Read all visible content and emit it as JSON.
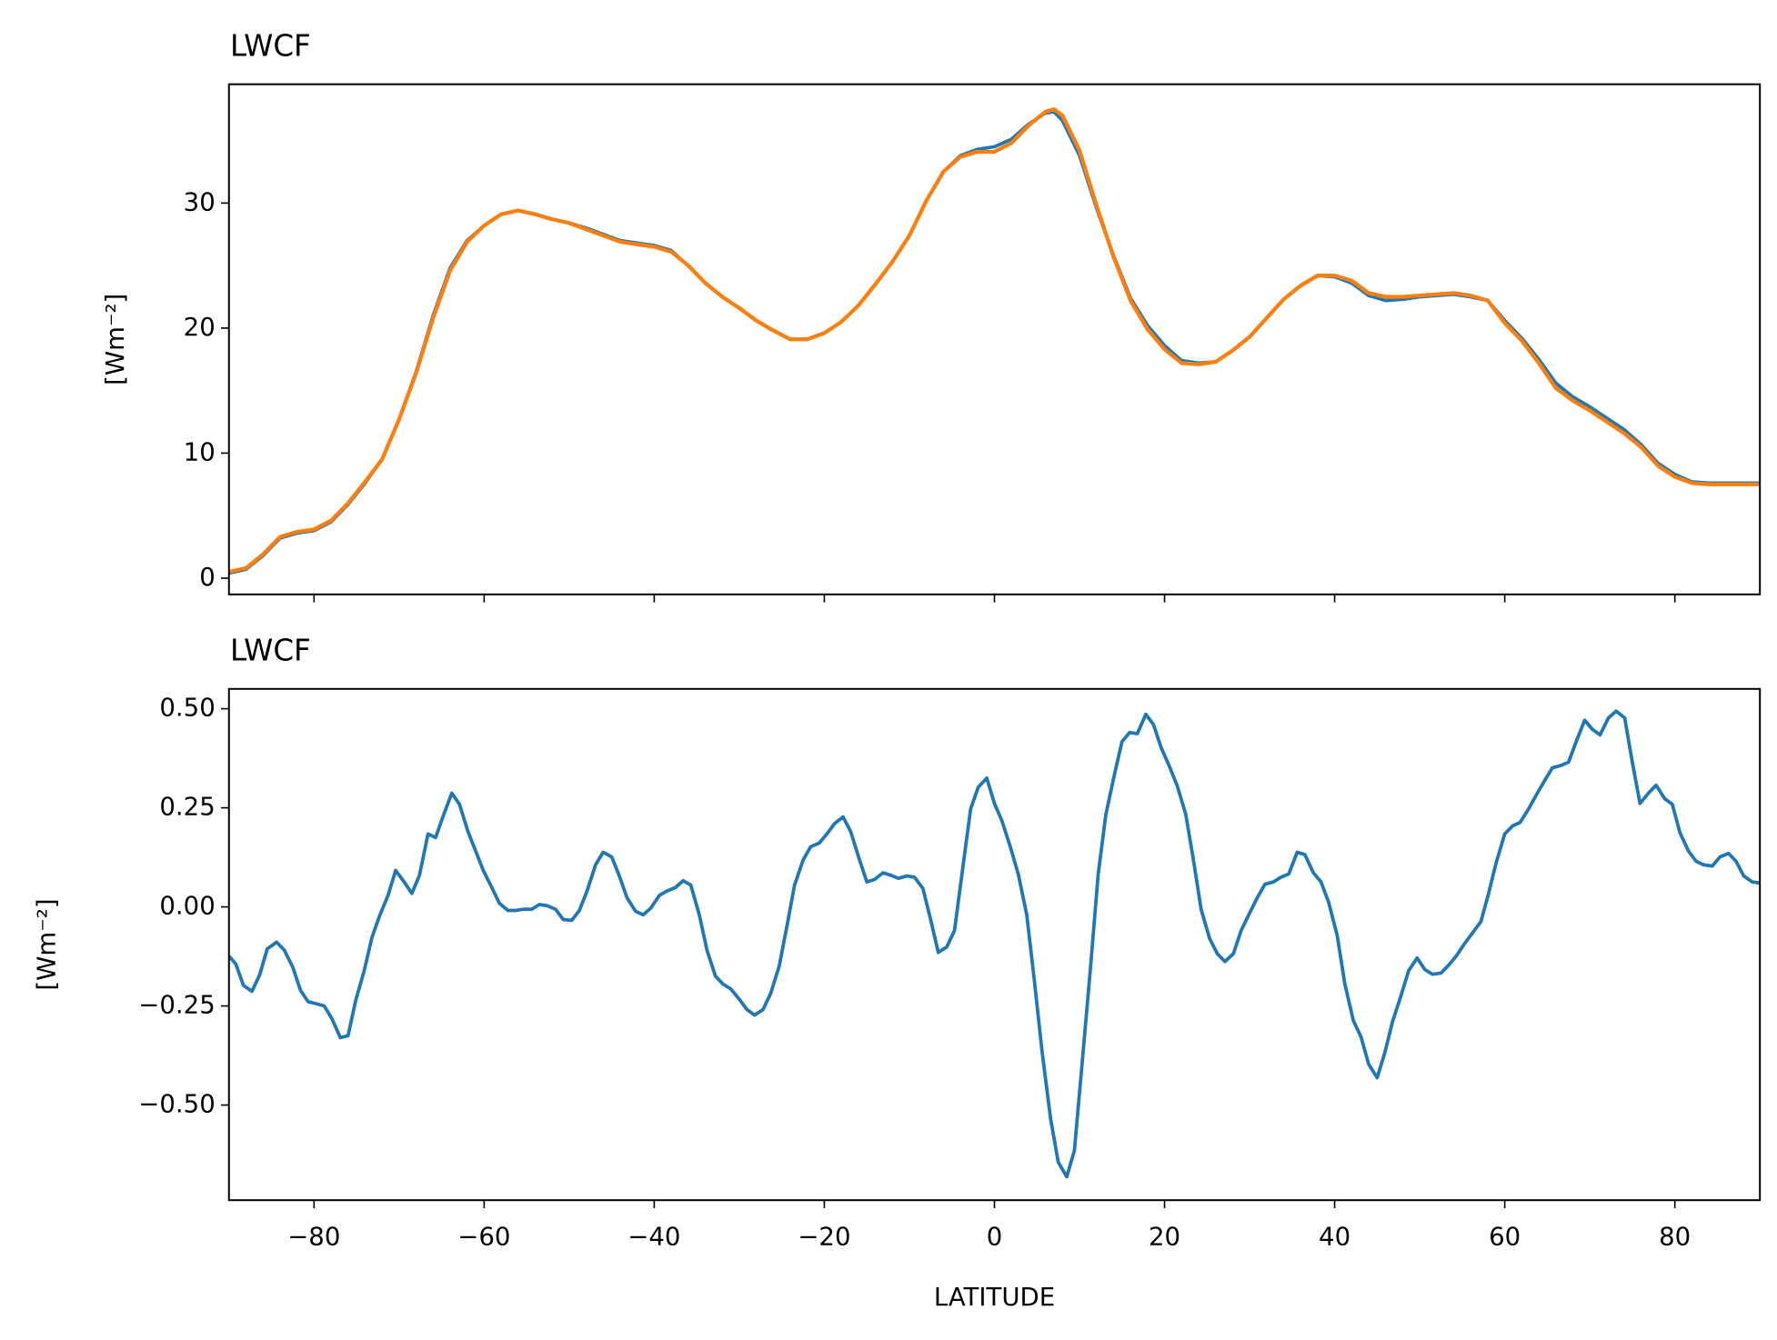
{
  "chart_data": [
    {
      "type": "line",
      "title": "LWCF",
      "ylabel": "[Wm⁻²]",
      "x": [
        -90,
        -88,
        -86,
        -84,
        -82,
        -80,
        -78,
        -76,
        -74,
        -72,
        -70,
        -68,
        -66,
        -64,
        -62,
        -60,
        -58,
        -56,
        -54,
        -52,
        -50,
        -48,
        -46,
        -44,
        -42,
        -40,
        -38,
        -36,
        -34,
        -32,
        -30,
        -28,
        -26,
        -24,
        -22,
        -20,
        -18,
        -16,
        -14,
        -12,
        -10,
        -8,
        -6,
        -4,
        -2,
        0,
        2,
        4,
        6,
        7,
        8,
        10,
        12,
        14,
        16,
        18,
        20,
        22,
        24,
        26,
        28,
        30,
        32,
        34,
        36,
        38,
        40,
        42,
        44,
        46,
        48,
        50,
        52,
        54,
        56,
        58,
        60,
        62,
        64,
        66,
        68,
        70,
        72,
        74,
        76,
        78,
        80,
        82,
        84,
        86,
        88,
        90
      ],
      "series": [
        {
          "color": "#1f77b4",
          "values": [
            0.4,
            0.7,
            1.8,
            3.2,
            3.6,
            3.8,
            4.5,
            5.9,
            7.6,
            9.5,
            12.7,
            16.5,
            21,
            24.8,
            27,
            28.2,
            29.1,
            29.4,
            29.1,
            28.7,
            28.4,
            28,
            27.5,
            27,
            26.8,
            26.6,
            26.2,
            25,
            23.6,
            22.5,
            21.6,
            20.6,
            19.8,
            19.1,
            19.1,
            19.6,
            20.5,
            21.8,
            23.5,
            25.3,
            27.4,
            30.2,
            32.5,
            33.8,
            34.3,
            34.5,
            35.1,
            36.3,
            37.2,
            37.3,
            36.6,
            33.8,
            29.6,
            25.8,
            22.4,
            20.2,
            18.6,
            17.4,
            17.2,
            17.3,
            18.2,
            19.3,
            20.8,
            22.3,
            23.4,
            24.2,
            24.1,
            23.6,
            22.6,
            22.2,
            22.3,
            22.5,
            22.6,
            22.7,
            22.5,
            22.2,
            20.6,
            19.2,
            17.5,
            15.6,
            14.5,
            13.7,
            12.8,
            11.9,
            10.7,
            9.2,
            8.3,
            7.7,
            7.6,
            7.6,
            7.6,
            7.6
          ]
        },
        {
          "color": "#ff7f0e",
          "values": [
            0.5,
            0.8,
            1.9,
            3.3,
            3.7,
            3.9,
            4.6,
            6,
            7.7,
            9.5,
            12.7,
            16.4,
            20.8,
            24.6,
            26.9,
            28.2,
            29.1,
            29.4,
            29.1,
            28.7,
            28.4,
            27.9,
            27.4,
            26.9,
            26.7,
            26.5,
            26.1,
            25,
            23.6,
            22.5,
            21.6,
            20.6,
            19.8,
            19.1,
            19.1,
            19.6,
            20.5,
            21.8,
            23.5,
            25.3,
            27.4,
            30.2,
            32.5,
            33.7,
            34.1,
            34.1,
            34.8,
            36.2,
            37.3,
            37.5,
            37,
            34.2,
            29.8,
            25.7,
            22.2,
            19.9,
            18.3,
            17.2,
            17.1,
            17.3,
            18.2,
            19.3,
            20.8,
            22.3,
            23.4,
            24.2,
            24.2,
            23.8,
            22.8,
            22.5,
            22.5,
            22.6,
            22.7,
            22.8,
            22.6,
            22.2,
            20.4,
            19,
            17.2,
            15.2,
            14.2,
            13.4,
            12.5,
            11.6,
            10.5,
            9,
            8.1,
            7.6,
            7.5,
            7.5,
            7.5,
            7.5
          ]
        }
      ],
      "xlim": [
        -90,
        90
      ],
      "ylim": [
        -1.3,
        39.5
      ],
      "xticks": [
        -80,
        -60,
        -40,
        -20,
        0,
        20,
        40,
        60,
        80
      ],
      "yticks": [
        0,
        10,
        20,
        30
      ]
    },
    {
      "type": "line",
      "title": "LWCF",
      "ylabel": "[Wm⁻²]",
      "xlabel": "LATITUDE",
      "x": [
        -90,
        -89.2,
        -88.3,
        -87.3,
        -86.4,
        -85.5,
        -84.4,
        -83.5,
        -82.5,
        -81.6,
        -80.7,
        -79.8,
        -78.8,
        -77.9,
        -76.9,
        -76,
        -75.1,
        -74.1,
        -73.2,
        -72.3,
        -71.3,
        -70.4,
        -69.4,
        -68.5,
        -67.6,
        -66.6,
        -65.7,
        -64.8,
        -63.8,
        -62.9,
        -61.9,
        -61,
        -60.1,
        -59.1,
        -58.2,
        -57.2,
        -56.3,
        -55.4,
        -54.4,
        -53.5,
        -52.6,
        -51.6,
        -50.7,
        -49.7,
        -48.8,
        -47.9,
        -46.9,
        -46,
        -45,
        -44.1,
        -43.2,
        -42.2,
        -41.3,
        -40.4,
        -39.4,
        -38.5,
        -37.5,
        -36.6,
        -35.7,
        -34.7,
        -33.8,
        -32.8,
        -31.9,
        -31,
        -30,
        -29.1,
        -28.2,
        -27.2,
        -26.3,
        -25.3,
        -24.4,
        -23.5,
        -22.5,
        -21.6,
        -20.6,
        -19.7,
        -18.8,
        -17.8,
        -16.9,
        -15.9,
        -15,
        -14.1,
        -13.1,
        -12.2,
        -11.3,
        -10.3,
        -9.4,
        -8.4,
        -7.5,
        -6.6,
        -5.6,
        -4.7,
        -3.8,
        -2.8,
        -1.9,
        -0.9,
        0,
        0.9,
        1.9,
        2.8,
        3.8,
        4.7,
        5.6,
        6.6,
        7.5,
        8.5,
        9.4,
        10.3,
        11.3,
        12.2,
        13.1,
        14.1,
        15,
        15.9,
        16.8,
        17.8,
        18.7,
        19.6,
        20.6,
        21.5,
        22.5,
        23.4,
        24.3,
        25.3,
        26.2,
        27.1,
        28.1,
        29,
        29.9,
        30.9,
        31.8,
        32.8,
        33.7,
        34.6,
        35.6,
        36.5,
        37.5,
        38.4,
        39.3,
        40.3,
        41.2,
        42.2,
        43.1,
        44,
        45,
        45.9,
        46.8,
        47.8,
        48.7,
        49.7,
        50.6,
        51.5,
        52.5,
        53.4,
        54.3,
        55.3,
        56.2,
        57.2,
        58.1,
        59,
        60,
        60.9,
        61.8,
        62.8,
        63.7,
        64.7,
        65.6,
        66.5,
        67.5,
        68.4,
        69.4,
        70.3,
        71.2,
        72.2,
        73.1,
        74.1,
        75,
        75.9,
        76.9,
        77.8,
        78.8,
        79.7,
        80.6,
        81.6,
        82.5,
        83.4,
        84.4,
        85.3,
        86.3,
        87.2,
        88.1,
        89.1,
        90
      ],
      "series": [
        {
          "color": "#1f77b4",
          "values": [
            -0.124,
            -0.144,
            -0.198,
            -0.213,
            -0.172,
            -0.106,
            -0.089,
            -0.109,
            -0.152,
            -0.21,
            -0.239,
            -0.244,
            -0.25,
            -0.282,
            -0.33,
            -0.325,
            -0.236,
            -0.161,
            -0.078,
            -0.023,
            0.029,
            0.092,
            0.063,
            0.034,
            0.08,
            0.184,
            0.175,
            0.23,
            0.287,
            0.259,
            0.19,
            0.141,
            0.092,
            0.049,
            0.009,
            -0.009,
            -0.009,
            -0.006,
            -0.006,
            0.006,
            0.003,
            -0.006,
            -0.032,
            -0.034,
            -0.009,
            0.04,
            0.106,
            0.138,
            0.126,
            0.078,
            0.023,
            -0.011,
            -0.02,
            -0.003,
            0.029,
            0.04,
            0.049,
            0.066,
            0.055,
            -0.02,
            -0.109,
            -0.175,
            -0.195,
            -0.207,
            -0.233,
            -0.259,
            -0.273,
            -0.259,
            -0.218,
            -0.149,
            -0.049,
            0.055,
            0.118,
            0.152,
            0.161,
            0.184,
            0.21,
            0.227,
            0.19,
            0.121,
            0.063,
            0.069,
            0.086,
            0.08,
            0.072,
            0.078,
            0.075,
            0.046,
            -0.032,
            -0.115,
            -0.101,
            -0.06,
            0.086,
            0.247,
            0.302,
            0.325,
            0.261,
            0.216,
            0.149,
            0.083,
            -0.02,
            -0.187,
            -0.365,
            -0.534,
            -0.644,
            -0.681,
            -0.615,
            -0.397,
            -0.152,
            0.083,
            0.233,
            0.333,
            0.417,
            0.44,
            0.437,
            0.486,
            0.46,
            0.402,
            0.353,
            0.305,
            0.233,
            0.118,
            -0.006,
            -0.08,
            -0.118,
            -0.138,
            -0.118,
            -0.06,
            -0.02,
            0.023,
            0.057,
            0.063,
            0.075,
            0.083,
            0.138,
            0.132,
            0.086,
            0.063,
            0.011,
            -0.072,
            -0.195,
            -0.287,
            -0.328,
            -0.397,
            -0.431,
            -0.368,
            -0.29,
            -0.224,
            -0.161,
            -0.129,
            -0.158,
            -0.17,
            -0.167,
            -0.147,
            -0.124,
            -0.092,
            -0.066,
            -0.037,
            0.034,
            0.112,
            0.184,
            0.204,
            0.213,
            0.247,
            0.282,
            0.319,
            0.351,
            0.356,
            0.365,
            0.417,
            0.471,
            0.448,
            0.434,
            0.477,
            0.494,
            0.477,
            0.365,
            0.261,
            0.287,
            0.307,
            0.273,
            0.259,
            0.187,
            0.141,
            0.115,
            0.106,
            0.103,
            0.126,
            0.135,
            0.115,
            0.078,
            0.063,
            0.06
          ]
        }
      ],
      "xlim": [
        -90,
        90
      ],
      "ylim": [
        -0.74,
        0.55
      ],
      "xticks": [
        {
          "value": -80,
          "label": "−80"
        },
        {
          "value": -60,
          "label": "−60"
        },
        {
          "value": -40,
          "label": "−40"
        },
        {
          "value": -20,
          "label": "−20"
        },
        0,
        20,
        40,
        60,
        80
      ],
      "yticks": [
        {
          "value": -0.5,
          "label": "−0.50"
        },
        {
          "value": -0.25,
          "label": "−0.25"
        },
        {
          "value": 0,
          "label": "0.00"
        },
        {
          "value": 0.25,
          "label": "0.25"
        },
        {
          "value": 0.5,
          "label": "0.50"
        }
      ]
    }
  ]
}
